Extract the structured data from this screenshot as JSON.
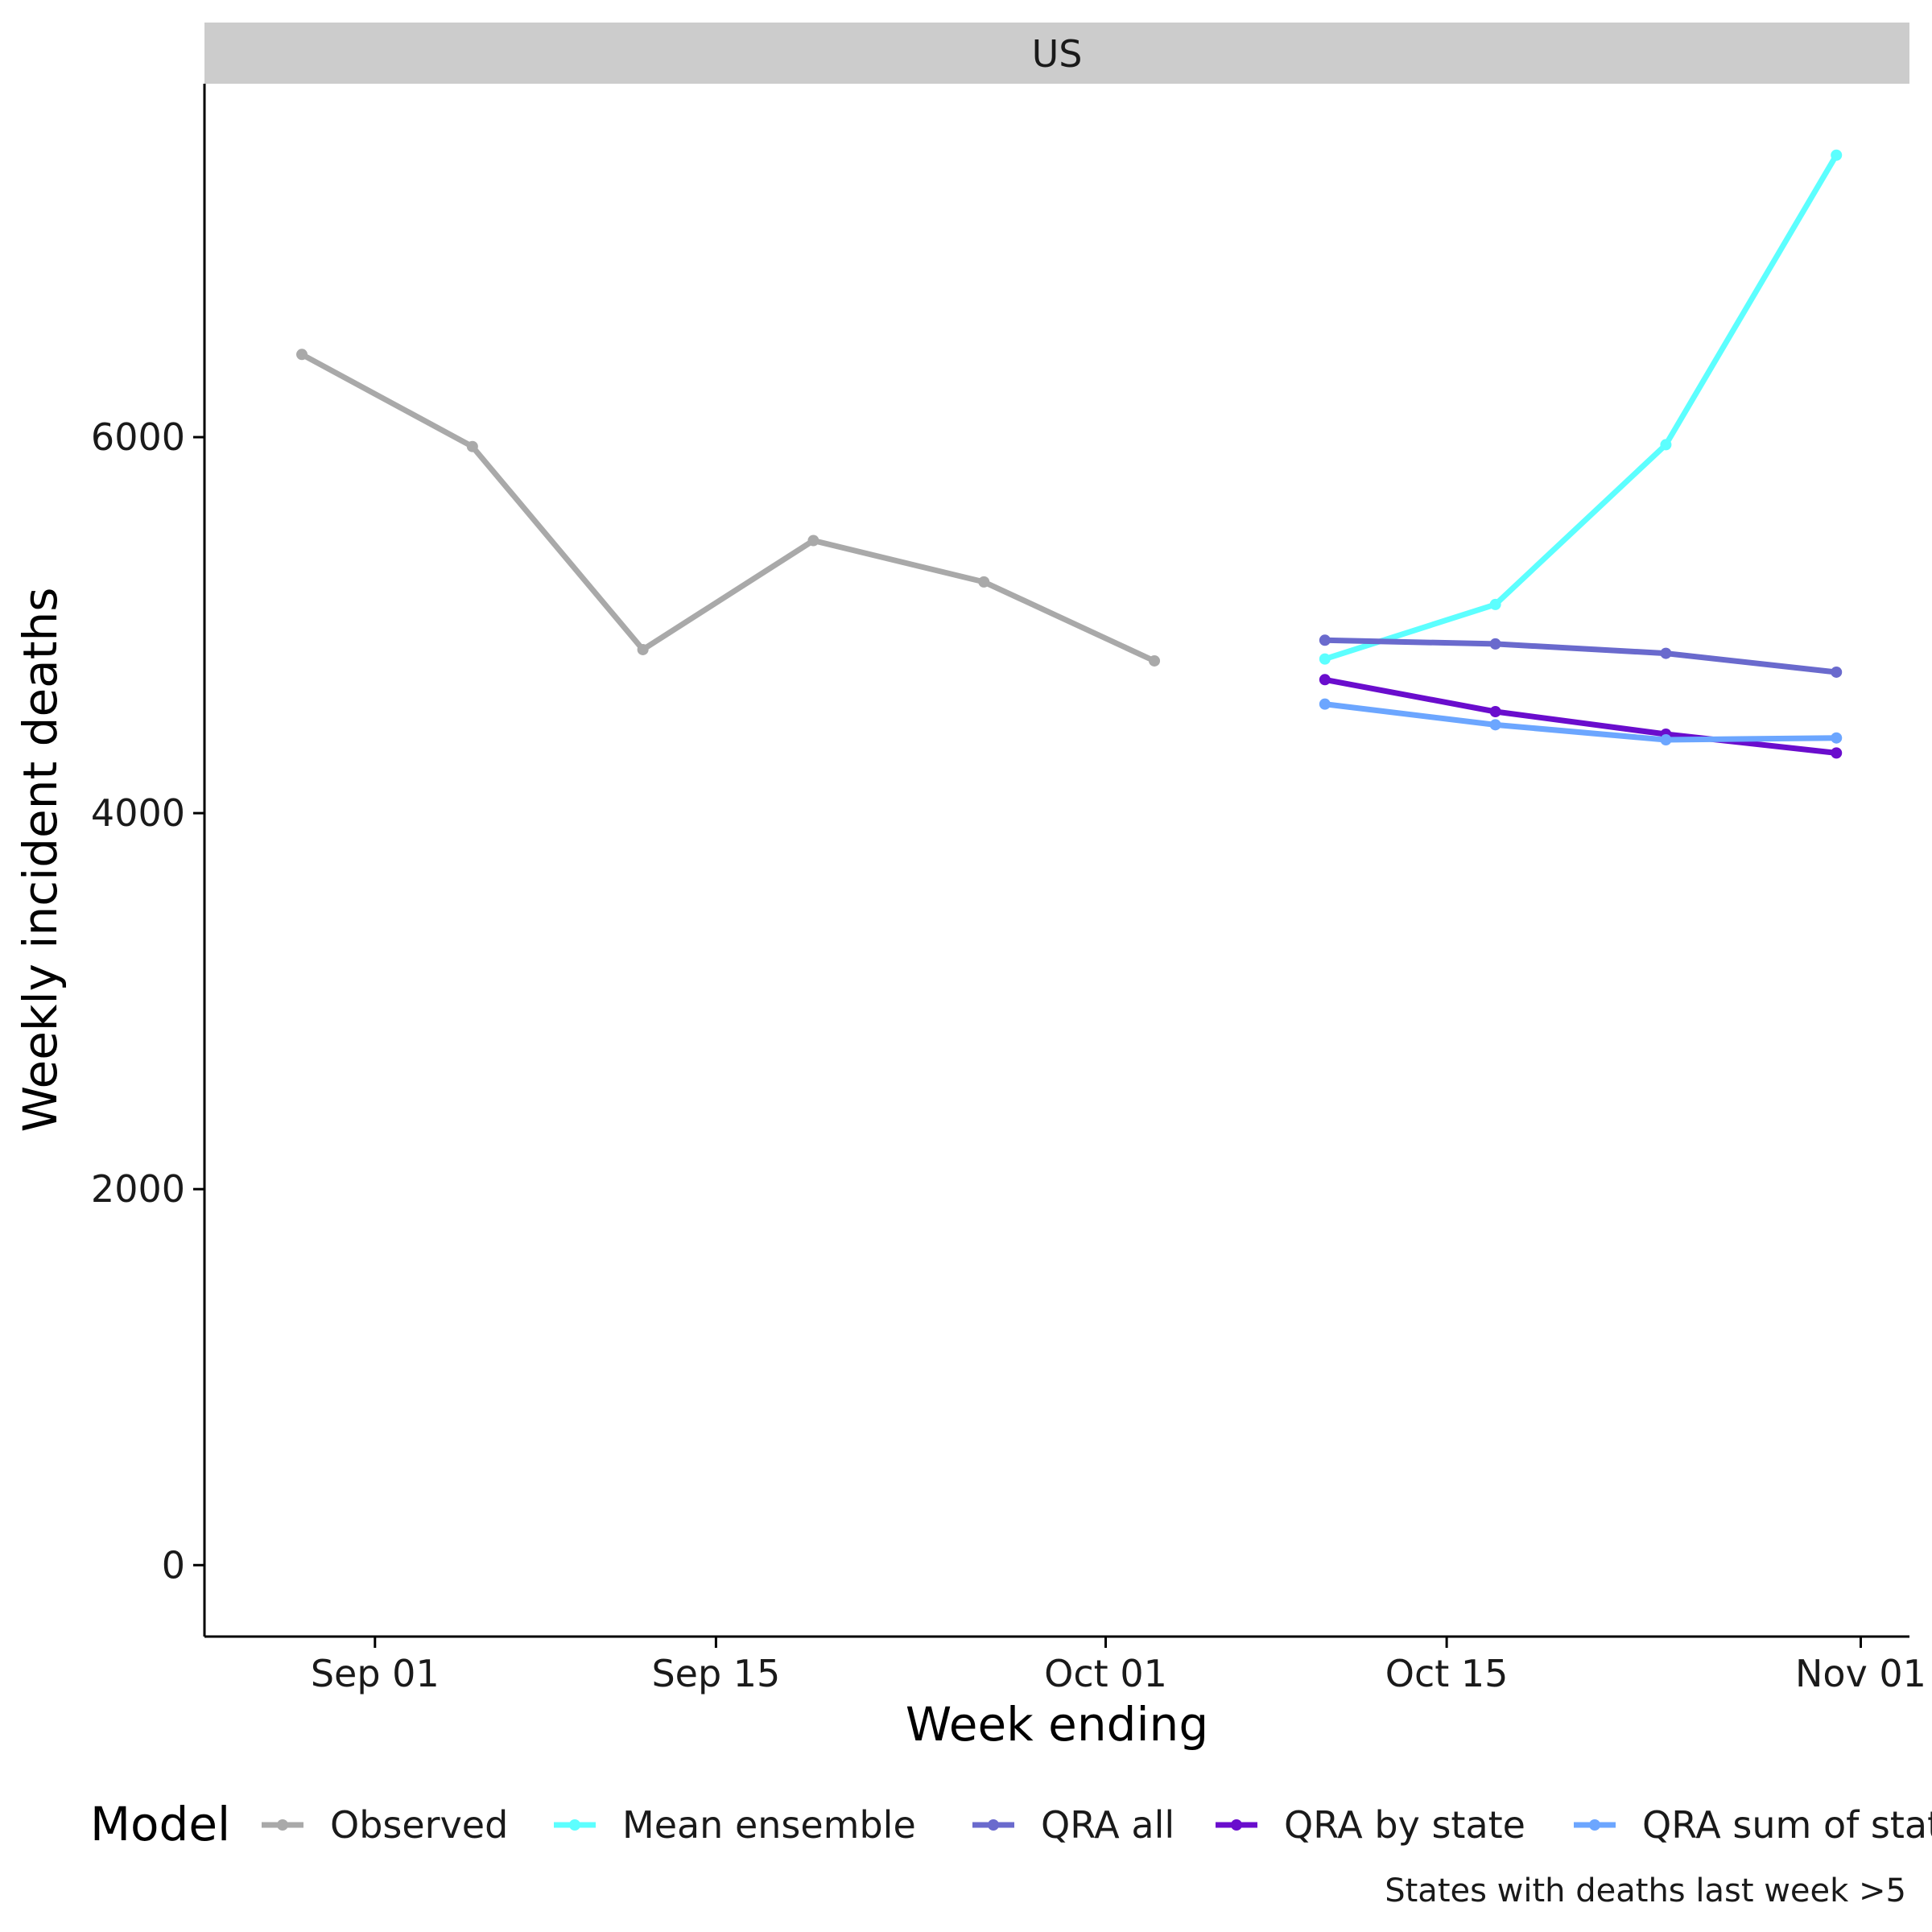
{
  "chart_data": {
    "type": "line",
    "facet": "US",
    "xlabel": "Week ending",
    "ylabel": "Weekly incident deaths",
    "x_ticks": [
      {
        "date": "2020-09-01",
        "label": "Sep 01"
      },
      {
        "date": "2020-09-15",
        "label": "Sep 15"
      },
      {
        "date": "2020-10-01",
        "label": "Oct 01"
      },
      {
        "date": "2020-10-15",
        "label": "Oct 15"
      },
      {
        "date": "2020-11-01",
        "label": "Nov 01"
      }
    ],
    "y_ticks": [
      0,
      2000,
      4000,
      6000
    ],
    "xlim": [
      "2020-08-25",
      "2020-11-03"
    ],
    "ylim": [
      -380,
      7880
    ],
    "grid": false,
    "legend_title": "Model",
    "legend_position": "bottom",
    "caption": "States with deaths last week >5",
    "series": [
      {
        "name": "Observed",
        "color": "#A9A9A9",
        "points": [
          {
            "x": "2020-08-29",
            "y": 6440
          },
          {
            "x": "2020-09-05",
            "y": 5950
          },
          {
            "x": "2020-09-12",
            "y": 4870
          },
          {
            "x": "2020-09-19",
            "y": 5450
          },
          {
            "x": "2020-09-26",
            "y": 5230
          },
          {
            "x": "2020-10-03",
            "y": 4810
          }
        ]
      },
      {
        "name": "Mean ensemble",
        "color": "#5CFFFF",
        "points": [
          {
            "x": "2020-10-10",
            "y": 4820
          },
          {
            "x": "2020-10-17",
            "y": 5110
          },
          {
            "x": "2020-10-24",
            "y": 5960
          },
          {
            "x": "2020-10-31",
            "y": 7500
          }
        ]
      },
      {
        "name": "QRA all",
        "color": "#6A6ACD",
        "points": [
          {
            "x": "2020-10-10",
            "y": 4920
          },
          {
            "x": "2020-10-17",
            "y": 4900
          },
          {
            "x": "2020-10-24",
            "y": 4850
          },
          {
            "x": "2020-10-31",
            "y": 4750
          }
        ]
      },
      {
        "name": "QRA by state",
        "color": "#6A0DCD",
        "points": [
          {
            "x": "2020-10-10",
            "y": 4710
          },
          {
            "x": "2020-10-17",
            "y": 4540
          },
          {
            "x": "2020-10-24",
            "y": 4420
          },
          {
            "x": "2020-10-31",
            "y": 4320
          }
        ]
      },
      {
        "name": "QRA sum of states",
        "color": "#6CA6FF",
        "points": [
          {
            "x": "2020-10-10",
            "y": 4580
          },
          {
            "x": "2020-10-17",
            "y": 4470
          },
          {
            "x": "2020-10-24",
            "y": 4390
          },
          {
            "x": "2020-10-31",
            "y": 4400
          }
        ]
      }
    ]
  }
}
